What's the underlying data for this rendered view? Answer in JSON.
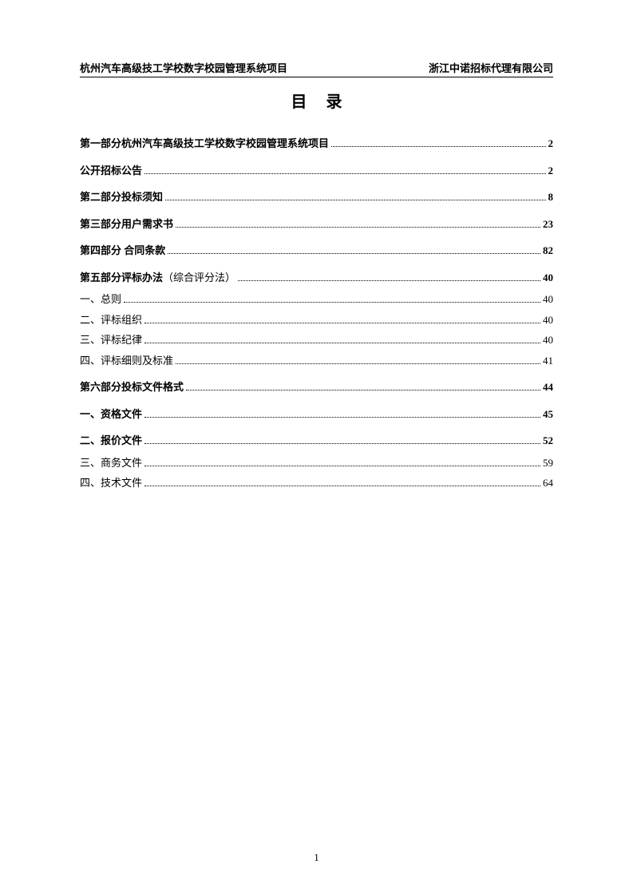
{
  "header": {
    "left": "杭州汽车高级技工学校数字校园管理系统项目",
    "right": "浙江中诺招标代理有限公司"
  },
  "title": "目录",
  "toc": [
    {
      "label": "第一部分杭州汽车高级技工学校数字校园管理系统项目",
      "page": "2",
      "bold": true,
      "first": true
    },
    {
      "label": "公开招标公告",
      "page": "2",
      "bold": true
    },
    {
      "label": "第二部分投标须知",
      "page": "8",
      "bold": true
    },
    {
      "label": "第三部分用户需求书",
      "page": "23",
      "bold": true
    },
    {
      "label": "第四部分  合同条款",
      "page": "82",
      "bold": true
    },
    {
      "label": "第五部分评标办法",
      "suffix": "（综合评分法）",
      "page": "40",
      "bold": true
    },
    {
      "label": "一、总则",
      "page": "40",
      "bold": false
    },
    {
      "label": "二、评标组织",
      "page": "40",
      "bold": false
    },
    {
      "label": "三、评标纪律",
      "page": "40",
      "bold": false
    },
    {
      "label": "四、评标细则及标准",
      "page": "41",
      "bold": false
    },
    {
      "label": "第六部分投标文件格式",
      "page": "44",
      "bold": true
    },
    {
      "label": "一、资格文件",
      "page": "45",
      "bold": true
    },
    {
      "label": "二、报价文件",
      "page": "52",
      "bold": true
    },
    {
      "label": "三、商务文件",
      "page": "59",
      "bold": false
    },
    {
      "label": "四、技术文件",
      "page": "64",
      "bold": false
    }
  ],
  "pageNumber": "1"
}
